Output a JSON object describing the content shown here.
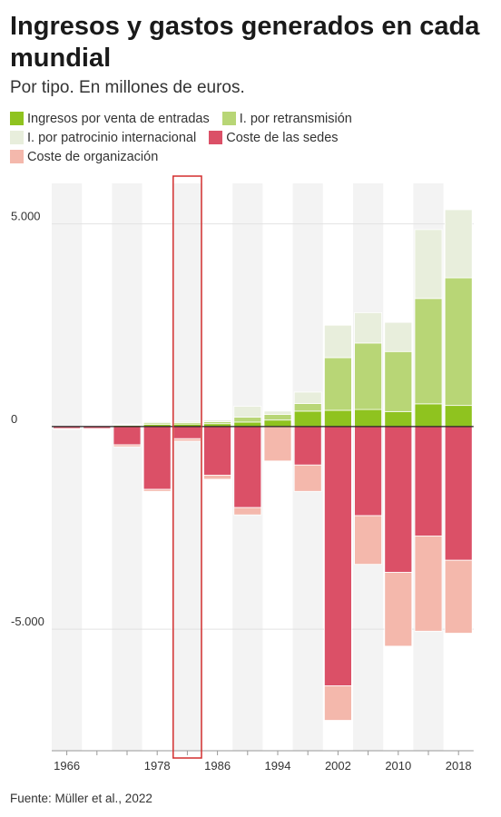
{
  "title": "Ingresos y gastos generados en cada mundial",
  "subtitle": "Por tipo. En millones de euros.",
  "source": "Fuente: Müller et al., 2022",
  "legend": [
    {
      "label": "Ingresos por venta de entradas",
      "color": "#8fc31f"
    },
    {
      "label": "I. por retransmisión",
      "color": "#b8d676"
    },
    {
      "label": "I. por patrocinio internacional",
      "color": "#e8eedc"
    },
    {
      "label": "Coste de las sedes",
      "color": "#db5067"
    },
    {
      "label": "Coste de organización",
      "color": "#f4b8ac"
    }
  ],
  "chart_data": {
    "type": "bar",
    "stacked": true,
    "categories": [
      "1966",
      "1970",
      "1974",
      "1978",
      "1982",
      "1986",
      "1990",
      "1994",
      "1998",
      "2002",
      "2006",
      "2010",
      "2014",
      "2018"
    ],
    "x_tick_labels": [
      "1966",
      "1978",
      "1986",
      "1994",
      "2002",
      "2010",
      "2018"
    ],
    "y_tick_labels": [
      "5.000",
      "0",
      "-5.000"
    ],
    "y_ticks": [
      5000,
      0,
      -5000
    ],
    "ylim": [
      -8000,
      6000
    ],
    "grid": true,
    "highlight_category": "1982",
    "series": [
      {
        "name": "Ingresos por venta de entradas",
        "color": "#8fc31f",
        "values": [
          0,
          0,
          30,
          50,
          60,
          70,
          110,
          160,
          380,
          400,
          420,
          370,
          560,
          520
        ]
      },
      {
        "name": "I. por retransmisión",
        "color": "#b8d676",
        "values": [
          0,
          0,
          20,
          40,
          40,
          50,
          120,
          140,
          190,
          1300,
          1640,
          1480,
          2600,
          3150
        ]
      },
      {
        "name": "I. por patrocinio internacional",
        "color": "#e8eedc",
        "values": [
          0,
          0,
          10,
          30,
          30,
          40,
          270,
          80,
          280,
          800,
          750,
          720,
          1700,
          1680
        ]
      },
      {
        "name": "Coste de las sedes",
        "color": "#db5067",
        "values": [
          -50,
          -50,
          -450,
          -1550,
          -300,
          -1200,
          -2000,
          0,
          -950,
          -6400,
          -2200,
          -3600,
          -2700,
          -3300
        ]
      },
      {
        "name": "Coste de organización",
        "color": "#f4b8ac",
        "values": [
          -20,
          -20,
          -50,
          -50,
          -60,
          -100,
          -180,
          -850,
          -650,
          -850,
          -1200,
          -1820,
          -2350,
          -1800
        ]
      }
    ]
  }
}
